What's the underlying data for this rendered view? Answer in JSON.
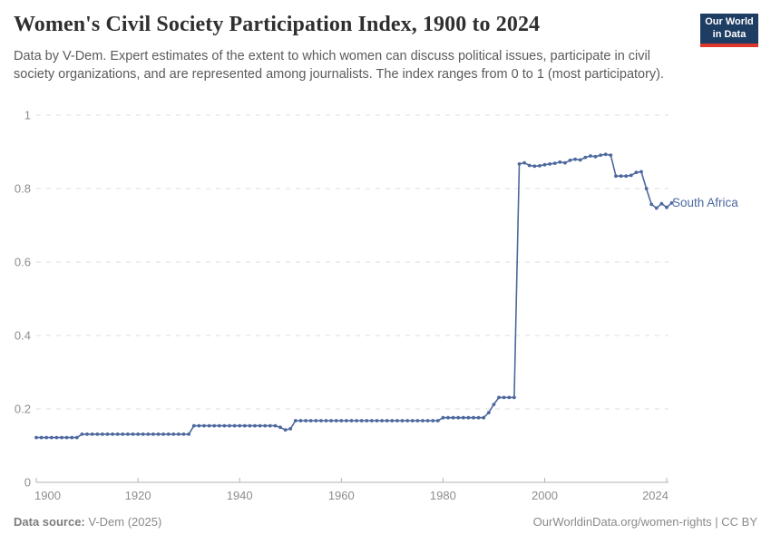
{
  "header": {
    "title": "Women's Civil Society Participation Index, 1900 to 2024",
    "subtitle": "Data by V-Dem. Expert estimates of the extent to which women can discuss political issues, participate in civil society organizations, and are represented among journalists. The index ranges from 0 to 1 (most participatory)."
  },
  "logo": {
    "line1": "Our World",
    "line2": "in Data",
    "bg": "#1d3d63",
    "accent": "#dc372d"
  },
  "chart_data": {
    "type": "line",
    "title": "Women's Civil Society Participation Index, 1900 to 2024",
    "entity_label": "South Africa",
    "x_start": 1900,
    "x_end": 2024,
    "xlim": [
      1900,
      2024
    ],
    "ylim": [
      0,
      1
    ],
    "x_ticks": [
      1900,
      1920,
      1940,
      1960,
      1980,
      2000,
      2024
    ],
    "y_ticks": [
      0,
      0.2,
      0.4,
      0.6,
      0.8,
      1
    ],
    "grid": "horizontal-dashed",
    "legend_position": "end-of-line-label",
    "series": [
      {
        "name": "South Africa",
        "color": "#4c689e",
        "values": [
          0.122,
          0.122,
          0.122,
          0.122,
          0.122,
          0.122,
          0.122,
          0.122,
          0.122,
          0.131,
          0.131,
          0.131,
          0.131,
          0.131,
          0.131,
          0.131,
          0.131,
          0.131,
          0.131,
          0.131,
          0.131,
          0.131,
          0.131,
          0.131,
          0.131,
          0.131,
          0.131,
          0.131,
          0.131,
          0.131,
          0.131,
          0.154,
          0.154,
          0.154,
          0.154,
          0.154,
          0.154,
          0.154,
          0.154,
          0.154,
          0.154,
          0.154,
          0.154,
          0.154,
          0.154,
          0.154,
          0.154,
          0.154,
          0.15,
          0.143,
          0.146,
          0.168,
          0.168,
          0.168,
          0.168,
          0.168,
          0.168,
          0.168,
          0.168,
          0.168,
          0.168,
          0.168,
          0.168,
          0.168,
          0.168,
          0.168,
          0.168,
          0.168,
          0.168,
          0.168,
          0.168,
          0.168,
          0.168,
          0.168,
          0.168,
          0.168,
          0.168,
          0.168,
          0.168,
          0.168,
          0.176,
          0.176,
          0.176,
          0.176,
          0.176,
          0.176,
          0.176,
          0.176,
          0.176,
          0.19,
          0.212,
          0.231,
          0.231,
          0.231,
          0.231,
          0.867,
          0.87,
          0.863,
          0.861,
          0.862,
          0.865,
          0.867,
          0.869,
          0.872,
          0.87,
          0.877,
          0.88,
          0.878,
          0.885,
          0.889,
          0.887,
          0.891,
          0.893,
          0.891,
          0.834,
          0.834,
          0.834,
          0.836,
          0.844,
          0.846,
          0.8,
          0.757,
          0.747,
          0.759,
          0.749,
          0.761
        ]
      }
    ]
  },
  "footer": {
    "source_label": "Data source:",
    "source_value": " V-Dem (2025)",
    "right": "OurWorldinData.org/women-rights | CC BY"
  }
}
